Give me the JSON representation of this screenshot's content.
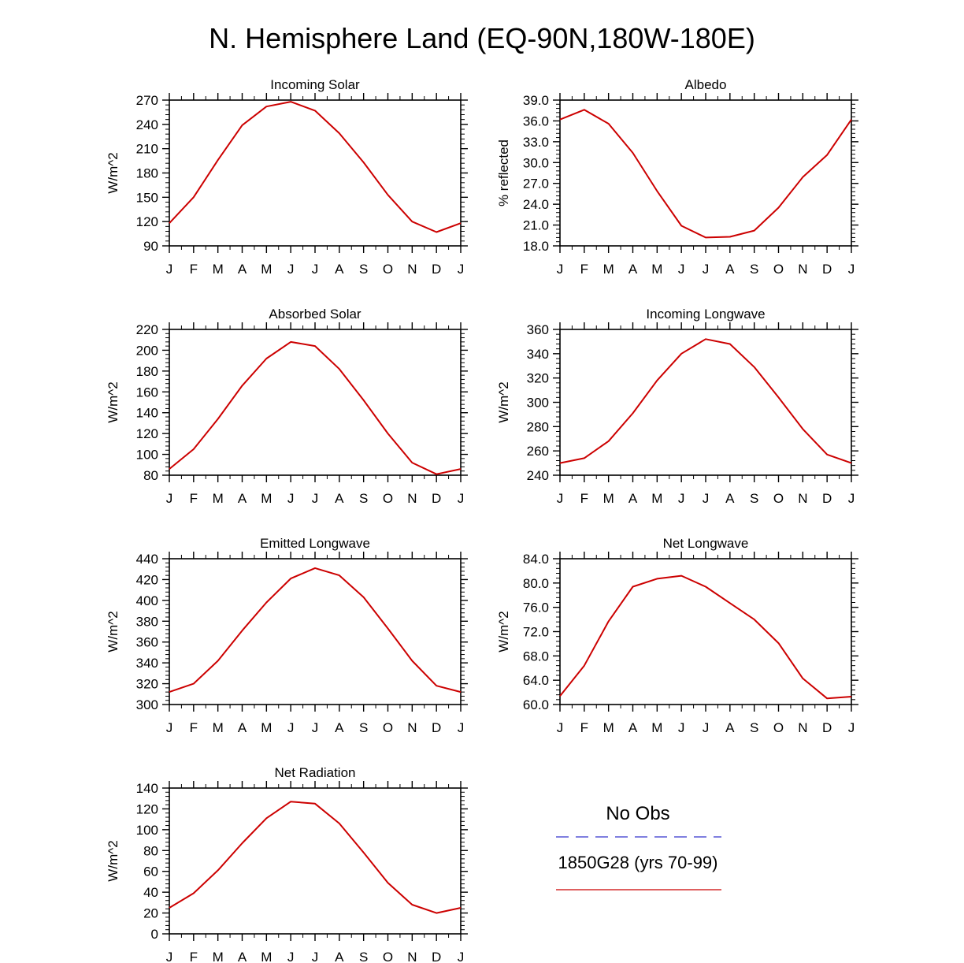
{
  "page_title": "N. Hemisphere Land (EQ-90N,180W-180E)",
  "legend": {
    "obs_label": "No Obs",
    "obs_color": "#3333cc",
    "model_label": "1850G28 (yrs 70-99)",
    "model_color": "#cc0000"
  },
  "chart_data": [
    {
      "type": "line",
      "title": "Incoming Solar",
      "ylabel": "W/m^2",
      "categories": [
        "J",
        "F",
        "M",
        "A",
        "M",
        "J",
        "J",
        "A",
        "S",
        "O",
        "N",
        "D",
        "J"
      ],
      "ylim": [
        90,
        270
      ],
      "yticks": [
        "90",
        "120",
        "150",
        "180",
        "210",
        "240",
        "270"
      ],
      "series": [
        {
          "values": [
            118,
            150,
            196,
            239,
            262,
            268,
            257,
            229,
            193,
            153,
            120,
            107,
            118
          ]
        }
      ]
    },
    {
      "type": "line",
      "title": "Albedo",
      "ylabel": "% reflected",
      "categories": [
        "J",
        "F",
        "M",
        "A",
        "M",
        "J",
        "J",
        "A",
        "S",
        "O",
        "N",
        "D",
        "J"
      ],
      "ylim": [
        18,
        39
      ],
      "yticks": [
        "18.0",
        "21.0",
        "24.0",
        "27.0",
        "30.0",
        "33.0",
        "36.0",
        "39.0"
      ],
      "series": [
        {
          "values": [
            36.2,
            37.6,
            35.6,
            31.4,
            25.9,
            20.9,
            19.2,
            19.3,
            20.2,
            23.5,
            27.9,
            31.1,
            36.2
          ]
        }
      ]
    },
    {
      "type": "line",
      "title": "Absorbed Solar",
      "ylabel": "W/m^2",
      "categories": [
        "J",
        "F",
        "M",
        "A",
        "M",
        "J",
        "J",
        "A",
        "S",
        "O",
        "N",
        "D",
        "J"
      ],
      "ylim": [
        80,
        220
      ],
      "yticks": [
        "80",
        "100",
        "120",
        "140",
        "160",
        "180",
        "200",
        "220"
      ],
      "series": [
        {
          "values": [
            86,
            105,
            134,
            166,
            192,
            208,
            204,
            182,
            152,
            120,
            92,
            81,
            86
          ]
        }
      ]
    },
    {
      "type": "line",
      "title": "Incoming Longwave",
      "ylabel": "W/m^2",
      "categories": [
        "J",
        "F",
        "M",
        "A",
        "M",
        "J",
        "J",
        "A",
        "S",
        "O",
        "N",
        "D",
        "J"
      ],
      "ylim": [
        240,
        360
      ],
      "yticks": [
        "240",
        "260",
        "280",
        "300",
        "320",
        "340",
        "360"
      ],
      "series": [
        {
          "values": [
            250,
            254,
            268,
            291,
            318,
            340,
            352,
            348,
            329,
            304,
            278,
            257,
            250
          ]
        }
      ]
    },
    {
      "type": "line",
      "title": "Emitted Longwave",
      "ylabel": "W/m^2",
      "categories": [
        "J",
        "F",
        "M",
        "A",
        "M",
        "J",
        "J",
        "A",
        "S",
        "O",
        "N",
        "D",
        "J"
      ],
      "ylim": [
        300,
        440
      ],
      "yticks": [
        "300",
        "320",
        "340",
        "360",
        "380",
        "400",
        "420",
        "440"
      ],
      "series": [
        {
          "values": [
            312,
            320,
            342,
            371,
            398,
            421,
            431,
            424,
            403,
            373,
            342,
            318,
            312
          ]
        }
      ]
    },
    {
      "type": "line",
      "title": "Net Longwave",
      "ylabel": "W/m^2",
      "categories": [
        "J",
        "F",
        "M",
        "A",
        "M",
        "J",
        "J",
        "A",
        "S",
        "O",
        "N",
        "D",
        "J"
      ],
      "ylim": [
        60,
        84
      ],
      "yticks": [
        "60.0",
        "64.0",
        "68.0",
        "72.0",
        "76.0",
        "80.0",
        "84.0"
      ],
      "series": [
        {
          "values": [
            61.4,
            66.4,
            73.7,
            79.4,
            80.7,
            81.2,
            79.4,
            76.7,
            74.0,
            70.1,
            64.3,
            61.0,
            61.3
          ]
        }
      ]
    },
    {
      "type": "line",
      "title": "Net Radiation",
      "ylabel": "W/m^2",
      "categories": [
        "J",
        "F",
        "M",
        "A",
        "M",
        "J",
        "J",
        "A",
        "S",
        "O",
        "N",
        "D",
        "J"
      ],
      "ylim": [
        0,
        140
      ],
      "yticks": [
        "0",
        "20",
        "40",
        "60",
        "80",
        "100",
        "120",
        "140"
      ],
      "series": [
        {
          "values": [
            25,
            39,
            61,
            87,
            111,
            127,
            125,
            106,
            78,
            49,
            28,
            20,
            25
          ]
        }
      ]
    }
  ]
}
